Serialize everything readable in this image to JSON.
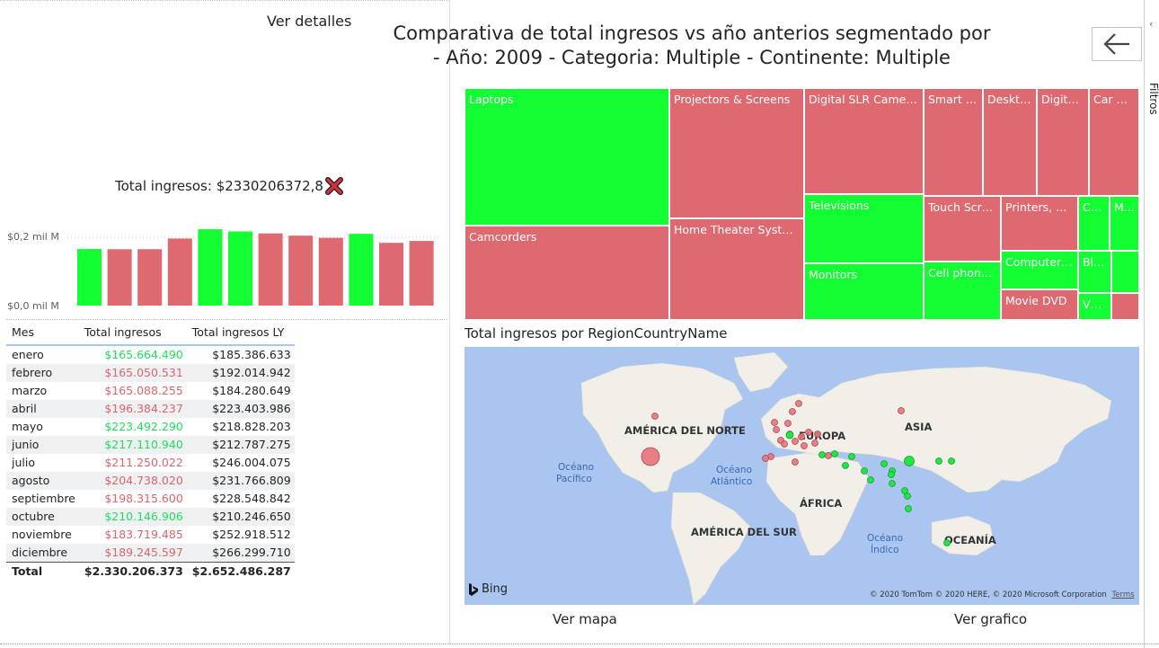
{
  "header": {
    "ver_detalles": "Ver detalles",
    "title_line1": "Comparativa de total ingresos vs año anterios segmentado por",
    "title_line2": "- Año: 2009  - Categoria: Multiple  - Continente: Multiple",
    "back_icon": "arrow-left-icon",
    "filters_label": "Filtros"
  },
  "kpi": {
    "label": "Total ingresos: $2330206372,8",
    "status_icon": "red-x-icon",
    "status_color": "#d13438"
  },
  "colors": {
    "positive": "#13fd33",
    "negative": "#df6970",
    "positive_text": "#1ee15b",
    "negative_text": "#e0646c"
  },
  "chart_data": {
    "type": "bar",
    "categories": [
      "enero",
      "febrero",
      "marzo",
      "abril",
      "mayo",
      "junio",
      "julio",
      "agosto",
      "septiembre",
      "octubre",
      "noviembre",
      "diciembre"
    ],
    "values": [
      165664490,
      165050531,
      165088255,
      196384237,
      223492290,
      217110940,
      211250022,
      204738020,
      198315600,
      210146906,
      183719485,
      189245597
    ],
    "status": [
      "g",
      "r",
      "r",
      "r",
      "g",
      "g",
      "r",
      "r",
      "r",
      "g",
      "r",
      "r"
    ],
    "ytick_labels": [
      "$0,2 mil M",
      "$0,0 mil M"
    ],
    "ylim": [
      0,
      230000000
    ]
  },
  "table": {
    "headers": [
      "Mes",
      "Total ingresos",
      "Total ingresos LY"
    ],
    "rows": [
      {
        "mes": "enero",
        "total": "$165.664.490",
        "ly": "$185.386.633",
        "s": "g"
      },
      {
        "mes": "febrero",
        "total": "$165.050.531",
        "ly": "$192.014.942",
        "s": "r"
      },
      {
        "mes": "marzo",
        "total": "$165.088.255",
        "ly": "$184.280.649",
        "s": "r"
      },
      {
        "mes": "abril",
        "total": "$196.384.237",
        "ly": "$223.403.986",
        "s": "r"
      },
      {
        "mes": "mayo",
        "total": "$223.492.290",
        "ly": "$218.828.203",
        "s": "g"
      },
      {
        "mes": "junio",
        "total": "$217.110.940",
        "ly": "$212.787.275",
        "s": "g"
      },
      {
        "mes": "julio",
        "total": "$211.250.022",
        "ly": "$246.004.075",
        "s": "r"
      },
      {
        "mes": "agosto",
        "total": "$204.738.020",
        "ly": "$231.766.809",
        "s": "r"
      },
      {
        "mes": "septiembre",
        "total": "$198.315.600",
        "ly": "$228.548.842",
        "s": "r"
      },
      {
        "mes": "octubre",
        "total": "$210.146.906",
        "ly": "$210.246.650",
        "s": "g"
      },
      {
        "mes": "noviembre",
        "total": "$183.719.485",
        "ly": "$252.918.512",
        "s": "r"
      },
      {
        "mes": "diciembre",
        "total": "$189.245.597",
        "ly": "$266.299.710",
        "s": "r"
      }
    ],
    "total": {
      "label": "Total",
      "total": "$2.330.206.373",
      "ly": "$2.652.486.287"
    }
  },
  "treemap": {
    "tiles": [
      {
        "label": "Laptops",
        "s": "g"
      },
      {
        "label": "Camcorders",
        "s": "r"
      },
      {
        "label": "Projectors & Screens",
        "s": "r"
      },
      {
        "label": "Home Theater System",
        "s": "r"
      },
      {
        "label": "Digital SLR Cameras",
        "s": "r"
      },
      {
        "label": "Televisions",
        "s": "g"
      },
      {
        "label": "Monitors",
        "s": "g"
      },
      {
        "label": "Smart p...",
        "s": "r"
      },
      {
        "label": "Deskto...",
        "s": "r"
      },
      {
        "label": "Digital...",
        "s": "r"
      },
      {
        "label": "Car Vi...",
        "s": "r"
      },
      {
        "label": "Touch Scre...",
        "s": "r"
      },
      {
        "label": "Printers, Sc...",
        "s": "r"
      },
      {
        "label": "C...",
        "s": "g"
      },
      {
        "label": "M...",
        "s": "g"
      },
      {
        "label": "Cell phone...",
        "s": "g"
      },
      {
        "label": "Computers...",
        "s": "g"
      },
      {
        "label": "Bl...",
        "s": "g"
      },
      {
        "label": "",
        "s": "g"
      },
      {
        "label": "Movie DVD",
        "s": "r"
      },
      {
        "label": "VC...",
        "s": "g"
      },
      {
        "label": "",
        "s": "r"
      }
    ]
  },
  "map": {
    "title": "Total ingresos por RegionCountryName",
    "continents": [
      "AMÉRICA DEL NORTE",
      "EUROPA",
      "ASIA",
      "ÁFRICA",
      "AMÉRICA DEL SUR",
      "OCEANÍA"
    ],
    "oceans": [
      "Océano",
      "Pacífico",
      "Océano",
      "Atlántico",
      "Océano",
      "Índico"
    ],
    "bing": "Bing",
    "copyright": "© 2020 TomTom © 2020 HERE, © 2020 Microsoft Corporation",
    "terms": "Terms"
  },
  "footer": {
    "ver_mapa": "Ver mapa",
    "ver_grafico": "Ver grafico"
  }
}
